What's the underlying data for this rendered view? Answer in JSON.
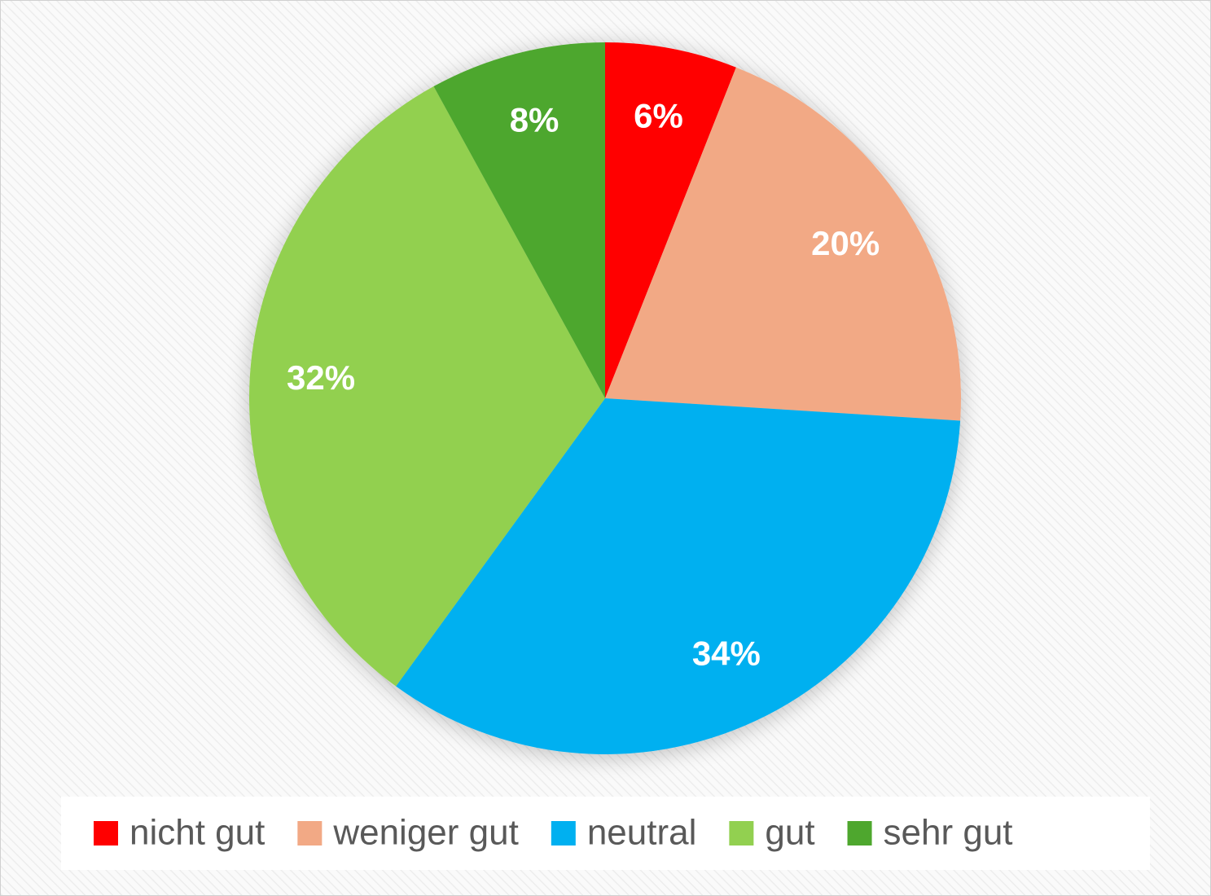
{
  "chart_data": {
    "type": "pie",
    "categories": [
      "nicht gut",
      "weniger gut",
      "neutral",
      "gut",
      "sehr gut"
    ],
    "values": [
      6,
      20,
      34,
      32,
      8
    ],
    "value_labels": [
      "6%",
      "20%",
      "34%",
      "32%",
      "8%"
    ],
    "colors": [
      "#ff0000",
      "#f2a985",
      "#00b0f0",
      "#92d050",
      "#4ea72e"
    ],
    "legend": "bottom"
  }
}
